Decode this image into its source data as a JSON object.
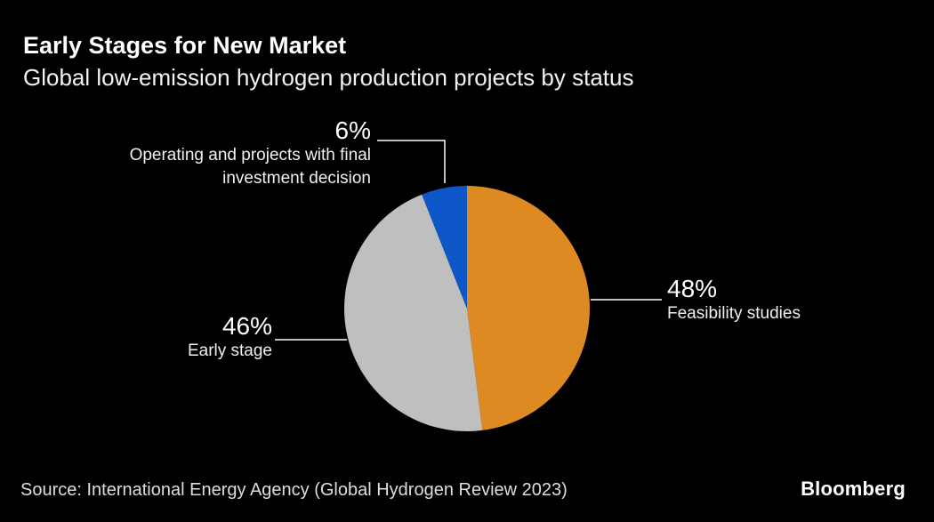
{
  "header": {
    "title": "Early Stages for New Market",
    "subtitle": "Global low-emission hydrogen production projects by status"
  },
  "chart_data": {
    "type": "pie",
    "title": "Global low-emission hydrogen production projects by status",
    "units": "%",
    "start_angle_deg": 0,
    "direction": "clockwise",
    "legend": "none",
    "label_style": "leader-line annotations",
    "slices": [
      {
        "label": "Feasibility studies",
        "value": 48,
        "pct_label": "48%",
        "color": "#DD8A22"
      },
      {
        "label": "Early stage",
        "value": 46,
        "pct_label": "46%",
        "color": "#BFBFBF"
      },
      {
        "label": "Operating and projects with final investment decision",
        "value": 6,
        "pct_label": "6%",
        "color": "#0D57C8"
      }
    ]
  },
  "annotations": {
    "fid": {
      "pct": "6%",
      "line1": "Operating and projects with final",
      "line2": "investment decision"
    },
    "feasibility": {
      "pct": "48%",
      "name": "Feasibility studies"
    },
    "early": {
      "pct": "46%",
      "name": "Early stage"
    }
  },
  "footer": {
    "source": "Source: International Energy Agency (Global Hydrogen Review 2023)",
    "brand": "Bloomberg"
  },
  "colors": {
    "background": "#000000",
    "title_text": "#ffffff",
    "muted_text": "#dedede",
    "leader_line": "#ffffff"
  }
}
